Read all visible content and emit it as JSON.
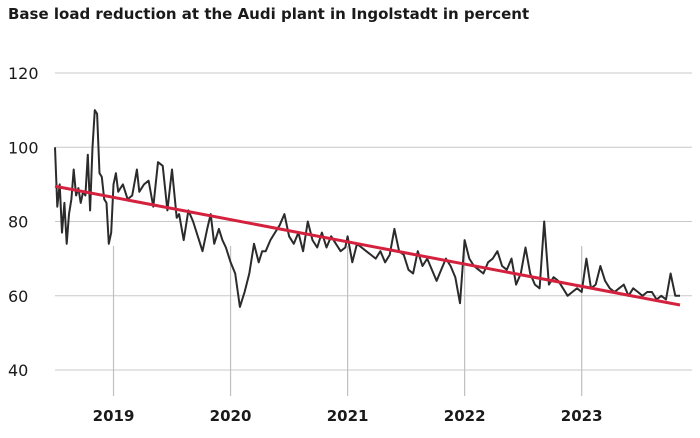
{
  "chart_data": {
    "type": "line",
    "title": "Base load reduction at the Audi plant in Ingolstadt in percent",
    "xlabel": "",
    "ylabel": "",
    "ylim": [
      36,
      124
    ],
    "xlim": [
      2018.5,
      2023.9
    ],
    "y_ticks": [
      40,
      60,
      80,
      100,
      120
    ],
    "x_ticks": [
      "2019",
      "2020",
      "2021",
      "2022",
      "2023"
    ],
    "grid": "horizontal",
    "legend": "none",
    "colors": {
      "line": "#2b2b2b",
      "trend": "#d4213d",
      "grid": "#c8c8c8",
      "year_marker": "#c0c0c0"
    },
    "series": [
      {
        "values_x": [
          2018.5,
          2018.52,
          2018.54,
          2018.56,
          2018.58,
          2018.6,
          2018.62,
          2018.64,
          2018.66,
          2018.68,
          2018.7,
          2018.72,
          2018.74,
          2018.76,
          2018.78,
          2018.8,
          2018.82,
          2018.84,
          2018.86,
          2018.88,
          2018.9,
          2018.92,
          2018.94,
          2018.96,
          2018.98,
          2019.0,
          2019.02,
          2019.04,
          2019.06,
          2019.08,
          2019.12,
          2019.16,
          2019.2,
          2019.22,
          2019.26,
          2019.3,
          2019.34,
          2019.38,
          2019.42,
          2019.46,
          2019.5,
          2019.54,
          2019.56,
          2019.6,
          2019.64,
          2019.68,
          2019.72,
          2019.76,
          2019.8,
          2019.83,
          2019.86,
          2019.9,
          2019.93,
          2019.96,
          2020.0,
          2020.04,
          2020.08,
          2020.12,
          2020.16,
          2020.2,
          2020.24,
          2020.27,
          2020.3,
          2020.34,
          2020.38,
          2020.42,
          2020.46,
          2020.5,
          2020.54,
          2020.58,
          2020.62,
          2020.66,
          2020.7,
          2020.74,
          2020.78,
          2020.82,
          2020.86,
          2020.9,
          2020.94,
          2020.98,
          2021.0,
          2021.04,
          2021.08,
          2021.12,
          2021.16,
          2021.2,
          2021.24,
          2021.28,
          2021.32,
          2021.36,
          2021.4,
          2021.44,
          2021.48,
          2021.52,
          2021.56,
          2021.6,
          2021.64,
          2021.68,
          2021.72,
          2021.76,
          2021.8,
          2021.84,
          2021.88,
          2021.92,
          2021.96,
          2022.0,
          2022.04,
          2022.08,
          2022.12,
          2022.16,
          2022.2,
          2022.24,
          2022.28,
          2022.32,
          2022.36,
          2022.4,
          2022.44,
          2022.48,
          2022.52,
          2022.56,
          2022.6,
          2022.64,
          2022.68,
          2022.72,
          2022.76,
          2022.8,
          2022.84,
          2022.88,
          2022.92,
          2022.96,
          2023.0,
          2023.04,
          2023.08,
          2023.12,
          2023.16,
          2023.2,
          2023.24,
          2023.28,
          2023.32,
          2023.36,
          2023.4,
          2023.44,
          2023.48,
          2023.52,
          2023.56,
          2023.6,
          2023.64,
          2023.68,
          2023.72,
          2023.76,
          2023.8,
          2023.84
        ],
        "values_y": [
          100,
          84,
          90,
          77,
          85,
          74,
          82,
          86,
          94,
          87,
          89,
          85,
          88,
          87,
          98,
          83,
          100,
          110,
          109,
          93,
          92,
          86,
          85,
          74,
          77,
          90,
          93,
          88,
          89,
          90,
          86,
          87,
          94,
          88,
          90,
          91,
          84,
          96,
          95,
          83,
          94,
          81,
          82,
          75,
          83,
          80,
          76,
          72,
          78,
          82,
          74,
          78,
          75,
          73,
          69,
          66,
          57,
          61,
          66,
          74,
          69,
          72,
          72,
          75,
          77,
          79,
          82,
          76,
          74,
          77,
          72,
          80,
          75,
          73,
          77,
          73,
          76,
          74,
          72,
          73,
          76,
          69,
          74,
          73,
          72,
          71,
          70,
          72,
          69,
          71,
          78,
          72,
          71,
          67,
          66,
          72,
          68,
          70,
          67,
          64,
          67,
          70,
          68,
          65,
          58,
          75,
          70,
          68,
          67,
          66,
          69,
          70,
          72,
          68,
          67,
          70,
          63,
          66,
          73,
          66,
          63,
          62,
          80,
          63,
          65,
          64,
          62,
          60,
          61,
          62,
          61,
          70,
          62,
          63,
          68,
          64,
          62,
          61,
          62,
          63,
          60,
          62,
          61,
          60,
          61,
          61,
          59,
          60,
          59,
          66,
          60,
          60
        ],
        "trend_start": [
          2018.5,
          89.5
        ],
        "trend_end": [
          2023.84,
          57.5
        ]
      }
    ]
  }
}
